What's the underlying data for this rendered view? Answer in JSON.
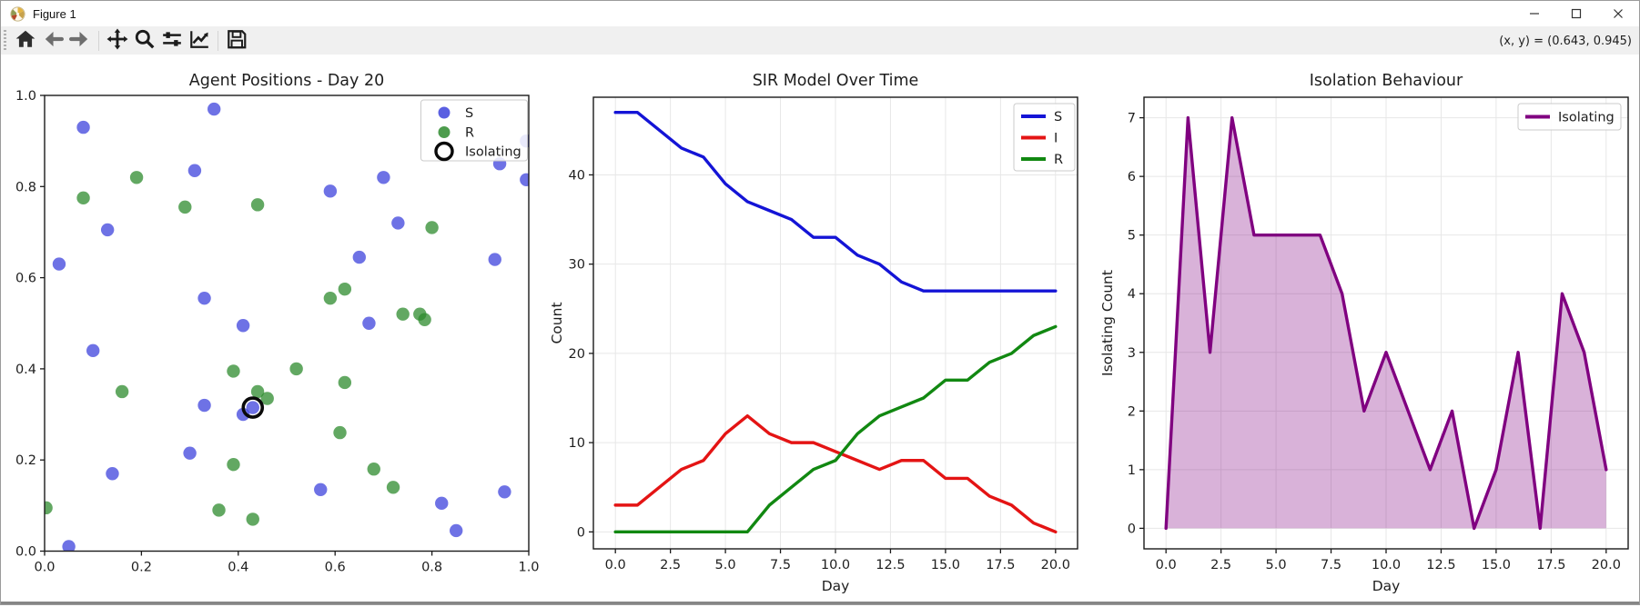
{
  "window": {
    "title": "Figure 1",
    "controls": [
      "minimize",
      "maximize",
      "close"
    ]
  },
  "toolbar": {
    "buttons": [
      "home",
      "back",
      "forward",
      "pan",
      "zoom-to-rect",
      "configure-subplots",
      "edit-parameters",
      "save"
    ],
    "coordinates_readout": "(x, y) = (0.643, 0.945)"
  },
  "colors": {
    "scatter_s": "#3d43dc",
    "scatter_r": "#2e8b2e",
    "isolating_ring": "#0a0a0a",
    "line_s": "#1414d6",
    "line_i": "#e41414",
    "line_r": "#118811",
    "isolating_line": "#800080",
    "isolating_fill": "rgba(128,0,128,0.3)",
    "grid": "#e7e7e7",
    "spine": "#1a1a1a",
    "toolbar_bg": "#f0f0f0"
  },
  "chart_data": [
    {
      "type": "scatter",
      "title": "Agent Positions - Day 20",
      "xlabel": "",
      "ylabel": "",
      "xlim": [
        0,
        1
      ],
      "ylim": [
        0,
        1
      ],
      "grid": false,
      "legend_position": "upper right",
      "xticks": {
        "values": [
          0,
          0.2,
          0.4,
          0.6,
          0.8,
          1.0
        ],
        "labels": [
          "0.0",
          "0.2",
          "0.4",
          "0.6",
          "0.8",
          "1.0"
        ]
      },
      "yticks": {
        "values": [
          0,
          0.2,
          0.4,
          0.6,
          0.8,
          1.0
        ],
        "labels": [
          "0.0",
          "0.2",
          "0.4",
          "0.6",
          "0.8",
          "1.0"
        ]
      },
      "series": [
        {
          "name": "S",
          "marker": "dot",
          "color": "#3d43dc",
          "points": [
            [
              0.35,
              0.97
            ],
            [
              0.08,
              0.93
            ],
            [
              0.31,
              0.835
            ],
            [
              0.13,
              0.705
            ],
            [
              0.59,
              0.79
            ],
            [
              0.7,
              0.82
            ],
            [
              0.73,
              0.72
            ],
            [
              0.03,
              0.63
            ],
            [
              0.65,
              0.645
            ],
            [
              0.33,
              0.555
            ],
            [
              0.41,
              0.495
            ],
            [
              0.67,
              0.5
            ],
            [
              0.1,
              0.44
            ],
            [
              0.33,
              0.32
            ],
            [
              0.43,
              0.315
            ],
            [
              0.41,
              0.3
            ],
            [
              0.3,
              0.215
            ],
            [
              0.14,
              0.17
            ],
            [
              0.57,
              0.135
            ],
            [
              0.05,
              0.01
            ],
            [
              0.82,
              0.105
            ],
            [
              0.85,
              0.045
            ],
            [
              0.995,
              0.9
            ],
            [
              0.94,
              0.85
            ],
            [
              0.995,
              0.815
            ],
            [
              0.93,
              0.64
            ],
            [
              0.95,
              0.13
            ]
          ]
        },
        {
          "name": "R",
          "marker": "dot",
          "color": "#2e8b2e",
          "points": [
            [
              0.19,
              0.82
            ],
            [
              0.08,
              0.775
            ],
            [
              0.29,
              0.755
            ],
            [
              0.44,
              0.76
            ],
            [
              0.8,
              0.71
            ],
            [
              0.62,
              0.575
            ],
            [
              0.59,
              0.555
            ],
            [
              0.74,
              0.52
            ],
            [
              0.775,
              0.52
            ],
            [
              0.785,
              0.508
            ],
            [
              0.16,
              0.35
            ],
            [
              0.39,
              0.395
            ],
            [
              0.52,
              0.4
            ],
            [
              0.44,
              0.35
            ],
            [
              0.46,
              0.335
            ],
            [
              0.62,
              0.37
            ],
            [
              0.61,
              0.26
            ],
            [
              0.39,
              0.19
            ],
            [
              0.68,
              0.18
            ],
            [
              0.72,
              0.14
            ],
            [
              0.003,
              0.095
            ],
            [
              0.36,
              0.09
            ],
            [
              0.43,
              0.07
            ]
          ]
        },
        {
          "name": "Isolating",
          "marker": "open-circle",
          "color": "#0a0a0a",
          "points": [
            [
              0.43,
              0.315
            ]
          ]
        }
      ]
    },
    {
      "type": "line",
      "title": "SIR Model Over Time",
      "xlabel": "Day",
      "ylabel": "Count",
      "xlim": [
        -1,
        21
      ],
      "ylim": [
        -1.9,
        48.7
      ],
      "grid": true,
      "legend_position": "upper right",
      "x": [
        0,
        1,
        2,
        3,
        4,
        5,
        6,
        7,
        8,
        9,
        10,
        11,
        12,
        13,
        14,
        15,
        16,
        17,
        18,
        19,
        20
      ],
      "xticks": {
        "values": [
          0,
          2.5,
          5,
          7.5,
          10,
          12.5,
          15,
          17.5,
          20
        ],
        "labels": [
          "0.0",
          "2.5",
          "5.0",
          "7.5",
          "10.0",
          "12.5",
          "15.0",
          "17.5",
          "20.0"
        ]
      },
      "yticks": {
        "values": [
          0,
          10,
          20,
          30,
          40
        ],
        "labels": [
          "0",
          "10",
          "20",
          "30",
          "40"
        ]
      },
      "series": [
        {
          "name": "S",
          "color": "#1414d6",
          "values": [
            47,
            47,
            45,
            43,
            42,
            39,
            37,
            36,
            35,
            33,
            33,
            31,
            30,
            28,
            27,
            27,
            27,
            27,
            27,
            27,
            27
          ]
        },
        {
          "name": "I",
          "color": "#e41414",
          "values": [
            3,
            3,
            5,
            7,
            8,
            11,
            13,
            11,
            10,
            10,
            9,
            8,
            7,
            8,
            8,
            6,
            6,
            4,
            3,
            1,
            0
          ]
        },
        {
          "name": "R",
          "color": "#118811",
          "values": [
            0,
            0,
            0,
            0,
            0,
            0,
            0,
            3,
            5,
            7,
            8,
            11,
            13,
            14,
            15,
            17,
            17,
            19,
            20,
            22,
            23
          ]
        }
      ]
    },
    {
      "type": "area",
      "title": "Isolation Behaviour",
      "xlabel": "Day",
      "ylabel": "Isolating Count",
      "xlim": [
        -1,
        21
      ],
      "ylim": [
        -0.35,
        7.35
      ],
      "grid": true,
      "legend_position": "upper right",
      "x": [
        0,
        1,
        2,
        3,
        4,
        5,
        6,
        7,
        8,
        9,
        10,
        11,
        12,
        13,
        14,
        15,
        16,
        17,
        18,
        19,
        20
      ],
      "xticks": {
        "values": [
          0,
          2.5,
          5,
          7.5,
          10,
          12.5,
          15,
          17.5,
          20
        ],
        "labels": [
          "0.0",
          "2.5",
          "5.0",
          "7.5",
          "10.0",
          "12.5",
          "15.0",
          "17.5",
          "20.0"
        ]
      },
      "yticks": {
        "values": [
          0,
          1,
          2,
          3,
          4,
          5,
          6,
          7
        ],
        "labels": [
          "0",
          "1",
          "2",
          "3",
          "4",
          "5",
          "6",
          "7"
        ]
      },
      "series": [
        {
          "name": "Isolating",
          "color": "#800080",
          "fill": "rgba(128,0,128,0.3)",
          "values": [
            0,
            7,
            3,
            7,
            5,
            5,
            5,
            5,
            4,
            2,
            3,
            2,
            1,
            2,
            0,
            1,
            3,
            0,
            4,
            3,
            1
          ]
        }
      ]
    }
  ]
}
